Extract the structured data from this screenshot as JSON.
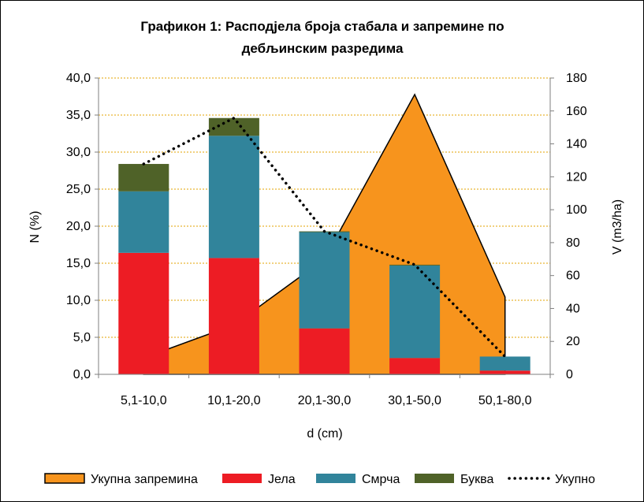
{
  "chart_data": {
    "type": "bar",
    "title_line1": "Графикон 1: Расподјела броја стабала и запремине по",
    "title_line2": "дебљинским разредима",
    "xlabel": "d (cm)",
    "ylabel": "N  (%)",
    "y2label": "V (m3/ha)",
    "categories": [
      "5,1-10,0",
      "10,1-20,0",
      "20,1-30,0",
      "30,1-50,0",
      "50,1-80,0"
    ],
    "ylim": [
      0,
      40
    ],
    "yticks": [
      "0,0",
      "5,0",
      "10,0",
      "15,0",
      "20,0",
      "25,0",
      "30,0",
      "35,0",
      "40,0"
    ],
    "y2lim": [
      0,
      180
    ],
    "y2ticks": [
      "0",
      "20",
      "40",
      "60",
      "80",
      "100",
      "120",
      "140",
      "160",
      "180"
    ],
    "grid": true,
    "legend_position": "bottom",
    "series": [
      {
        "name": "Укупна запремина",
        "kind": "area",
        "axis": "right",
        "color": "#F7941D",
        "values": [
          10,
          30,
          70,
          170,
          47
        ]
      },
      {
        "name": "Јела",
        "kind": "stacked-bar",
        "axis": "left",
        "color": "#ED1C24",
        "values": [
          16.4,
          15.7,
          6.2,
          2.2,
          0.5
        ]
      },
      {
        "name": "Смрча",
        "kind": "stacked-bar",
        "axis": "left",
        "color": "#31849B",
        "values": [
          8.3,
          16.5,
          13.0,
          12.5,
          1.9
        ]
      },
      {
        "name": "Буква",
        "kind": "stacked-bar",
        "axis": "left",
        "color": "#4F6228",
        "values": [
          3.7,
          2.4,
          0.1,
          0.1,
          0.0
        ]
      },
      {
        "name": "Укупно",
        "kind": "dotted-line",
        "axis": "left",
        "color": "#000000",
        "values": [
          28.4,
          34.6,
          19.3,
          14.8,
          2.4
        ]
      }
    ]
  }
}
